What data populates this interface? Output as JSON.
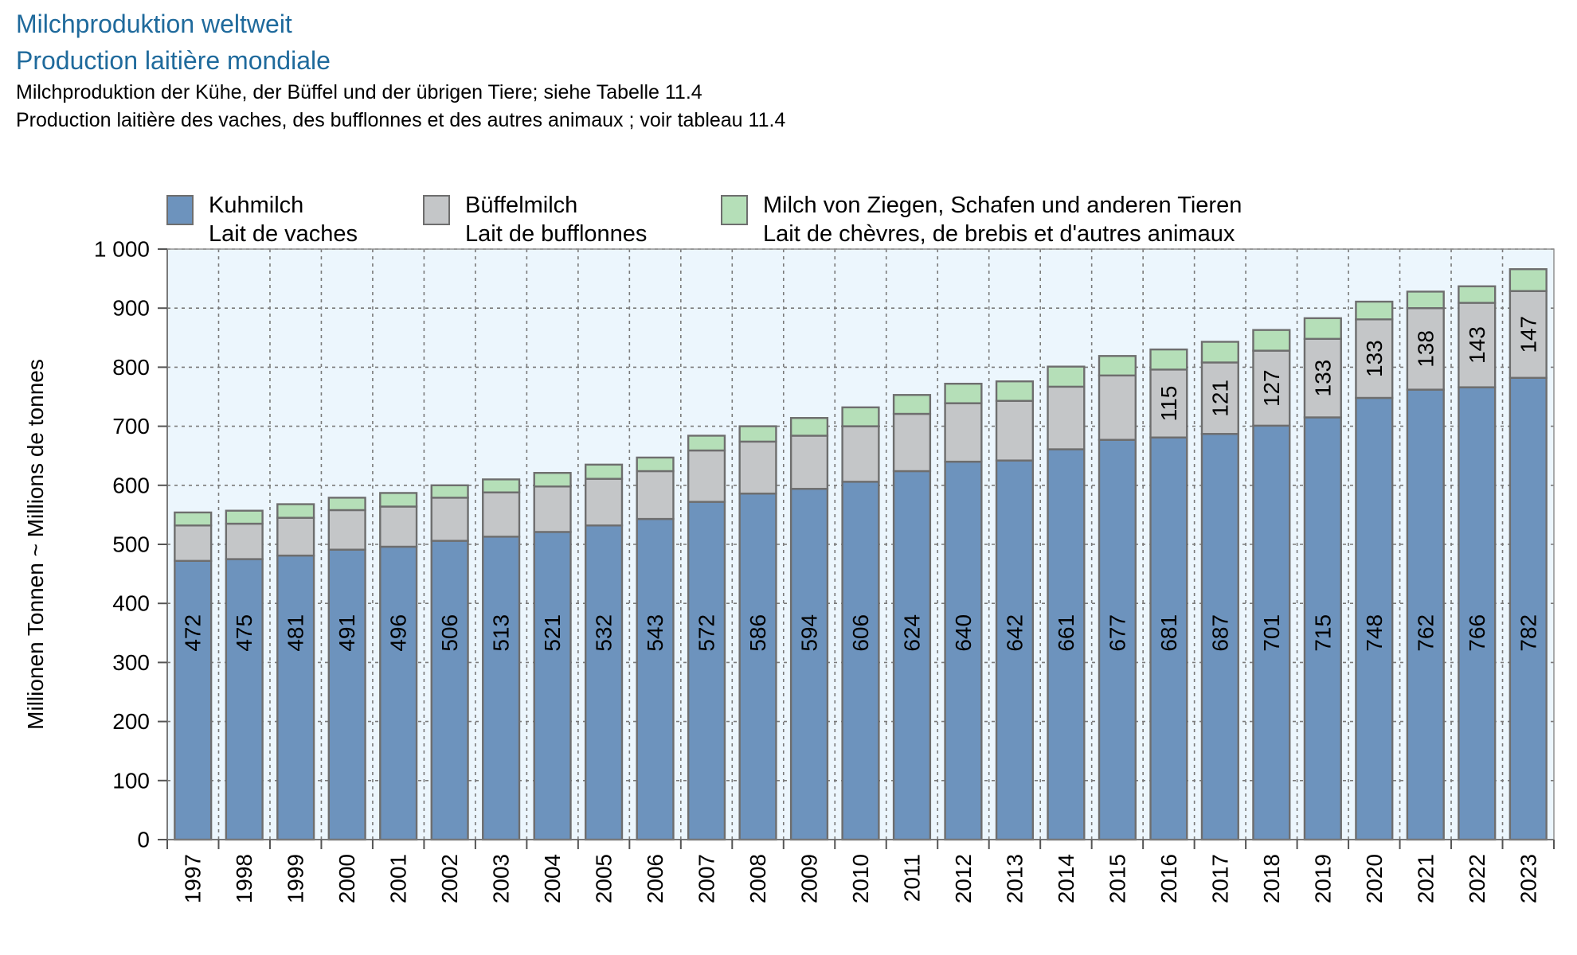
{
  "title_de": "Milchproduktion weltweit",
  "title_fr": "Production laitière mondiale",
  "subtitle_de": "Milchproduktion der Kühe, der Büffel und der übrigen Tiere; siehe Tabelle 11.4",
  "subtitle_fr": "Production laitière des vaches, des bufflonnes et des autres animaux ; voir tableau 11.4",
  "colors": {
    "cow": "#6d93bd",
    "buffalo": "#c4c6c8",
    "other": "#b5dfb8",
    "plot_bg": "#ecf6fd",
    "bar_edge": "#6e6e6e"
  },
  "chart_data": {
    "type": "bar",
    "stacked": true,
    "categories": [
      "1997",
      "1998",
      "1999",
      "2000",
      "2001",
      "2002",
      "2003",
      "2004",
      "2005",
      "2006",
      "2007",
      "2008",
      "2009",
      "2010",
      "2011",
      "2012",
      "2013",
      "2014",
      "2015",
      "2016",
      "2017",
      "2018",
      "2019",
      "2020",
      "2021",
      "2022",
      "2023"
    ],
    "series": [
      {
        "name_de": "Kuhmilch",
        "name_fr": "Lait de vaches",
        "color": "#6d93bd",
        "values": [
          472,
          475,
          481,
          491,
          496,
          506,
          513,
          521,
          532,
          543,
          572,
          586,
          594,
          606,
          624,
          640,
          642,
          661,
          677,
          681,
          687,
          701,
          715,
          748,
          762,
          766,
          782
        ]
      },
      {
        "name_de": "Büffelmilch",
        "name_fr": "Lait de bufflonnes",
        "color": "#c4c6c8",
        "values": [
          60,
          60,
          64,
          67,
          68,
          73,
          75,
          77,
          79,
          81,
          87,
          88,
          90,
          94,
          97,
          99,
          101,
          106,
          109,
          115,
          121,
          127,
          133,
          133,
          138,
          143,
          147
        ]
      },
      {
        "name_de": "Milch von Ziegen, Schafen und anderen Tieren",
        "name_fr": "Lait de chèvres, de brebis et d'autres animaux",
        "color": "#b5dfb8",
        "values": [
          22,
          22,
          23,
          21,
          23,
          21,
          22,
          23,
          24,
          23,
          25,
          26,
          30,
          32,
          32,
          33,
          33,
          34,
          33,
          34,
          35,
          35,
          35,
          30,
          28,
          28,
          37
        ]
      }
    ],
    "labeled_values": [
      {
        "series": 0,
        "from_index": 0,
        "to_index": 26
      },
      {
        "series": 1,
        "from_index": 19,
        "to_index": 26
      }
    ],
    "ylabel_de": "Millionen Tonnen",
    "ylabel_sep": "~",
    "ylabel_fr": "Millions de tonnes",
    "ylim": [
      0,
      1000
    ],
    "yticks": [
      0,
      100,
      200,
      300,
      400,
      500,
      600,
      700,
      800,
      900,
      1000
    ],
    "ytick_labels": [
      "0",
      "100",
      "200",
      "300",
      "400",
      "500",
      "600",
      "700",
      "800",
      "900",
      "1 000"
    ],
    "grid": true,
    "legend_position": "top"
  }
}
